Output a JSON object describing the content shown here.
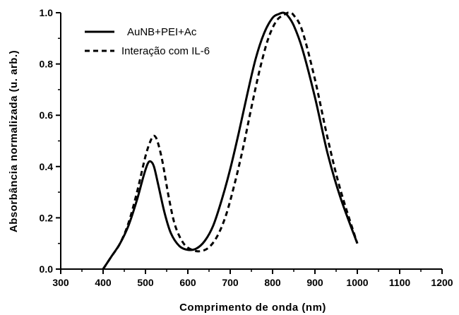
{
  "chart_data": {
    "type": "line",
    "title": "",
    "xlabel": "Comprimento de onda (nm)",
    "ylabel": "Absorbância normalizada (u. arb.)",
    "xlim": [
      300,
      1200
    ],
    "ylim": [
      0.0,
      1.0
    ],
    "x_ticks": [
      300,
      400,
      500,
      600,
      700,
      800,
      900,
      1000,
      1100,
      1200
    ],
    "x_tick_labels": [
      "300",
      "400",
      "500",
      "600",
      "700",
      "800",
      "900",
      "1000",
      "1100",
      "1200"
    ],
    "y_ticks": [
      0.0,
      0.2,
      0.4,
      0.6,
      0.8,
      1.0
    ],
    "y_tick_labels": [
      "0.0",
      "0.2",
      "0.4",
      "0.6",
      "0.8",
      "1.0"
    ],
    "grid": false,
    "legend_position": "top-left",
    "series": [
      {
        "name": "AuNB+PEI+Ac",
        "style": "solid",
        "color": "#000000",
        "x": [
          400,
          420,
          440,
          460,
          480,
          495,
          505,
          512,
          520,
          530,
          545,
          560,
          580,
          600,
          620,
          640,
          660,
          680,
          700,
          720,
          740,
          760,
          780,
          800,
          815,
          825,
          835,
          850,
          870,
          900,
          930,
          960,
          1000
        ],
        "y": [
          0.0,
          0.05,
          0.1,
          0.17,
          0.27,
          0.36,
          0.41,
          0.42,
          0.4,
          0.33,
          0.22,
          0.14,
          0.09,
          0.075,
          0.08,
          0.11,
          0.17,
          0.27,
          0.39,
          0.53,
          0.68,
          0.82,
          0.92,
          0.98,
          0.995,
          1.0,
          0.99,
          0.95,
          0.86,
          0.67,
          0.45,
          0.28,
          0.1
        ]
      },
      {
        "name": "Interação com IL-6",
        "style": "dashed",
        "color": "#000000",
        "x": [
          400,
          420,
          440,
          460,
          480,
          500,
          512,
          520,
          528,
          540,
          555,
          570,
          590,
          610,
          630,
          650,
          670,
          690,
          710,
          730,
          750,
          770,
          790,
          810,
          830,
          840,
          850,
          870,
          900,
          930,
          960,
          1000
        ],
        "y": [
          0.0,
          0.05,
          0.1,
          0.18,
          0.3,
          0.44,
          0.5,
          0.52,
          0.5,
          0.42,
          0.28,
          0.17,
          0.1,
          0.075,
          0.07,
          0.085,
          0.13,
          0.21,
          0.33,
          0.47,
          0.63,
          0.78,
          0.9,
          0.97,
          0.995,
          1.0,
          0.99,
          0.93,
          0.74,
          0.51,
          0.31,
          0.1
        ]
      }
    ]
  }
}
